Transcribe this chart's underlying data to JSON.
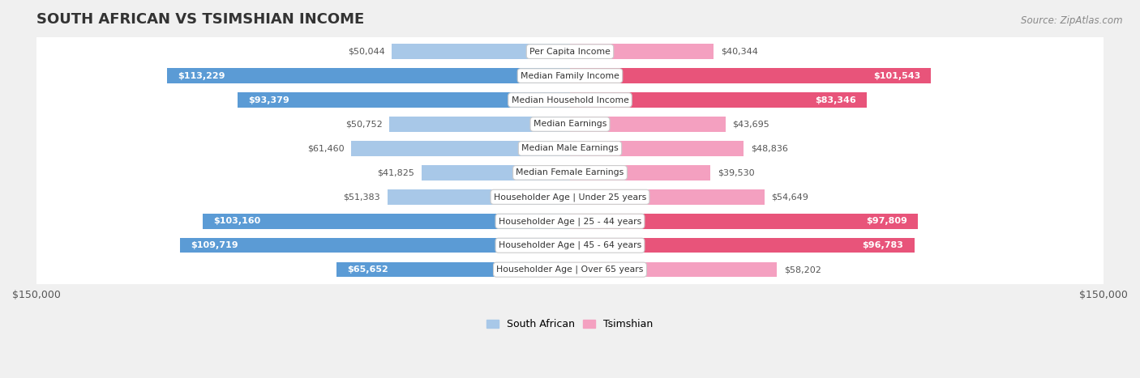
{
  "title": "SOUTH AFRICAN VS TSIMSHIAN INCOME",
  "source": "Source: ZipAtlas.com",
  "categories": [
    "Per Capita Income",
    "Median Family Income",
    "Median Household Income",
    "Median Earnings",
    "Median Male Earnings",
    "Median Female Earnings",
    "Householder Age | Under 25 years",
    "Householder Age | 25 - 44 years",
    "Householder Age | 45 - 64 years",
    "Householder Age | Over 65 years"
  ],
  "south_african": [
    50044,
    113229,
    93379,
    50752,
    61460,
    41825,
    51383,
    103160,
    109719,
    65652
  ],
  "tsimshian": [
    40344,
    101543,
    83346,
    43695,
    48836,
    39530,
    54649,
    97809,
    96783,
    58202
  ],
  "south_african_labels": [
    "$50,044",
    "$113,229",
    "$93,379",
    "$50,752",
    "$61,460",
    "$41,825",
    "$51,383",
    "$103,160",
    "$109,719",
    "$65,652"
  ],
  "tsimshian_labels": [
    "$40,344",
    "$101,543",
    "$83,346",
    "$43,695",
    "$48,836",
    "$39,530",
    "$54,649",
    "$97,809",
    "$96,783",
    "$58,202"
  ],
  "color_sa_light": "#a8c8e8",
  "color_sa_dark": "#5b9bd5",
  "color_ts_light": "#f4a0c0",
  "color_ts_dark": "#e8547a",
  "background_color": "#f0f0f0",
  "row_bg_color": "#ffffff",
  "row_border_color": "#d0d0d0",
  "max_value": 150000,
  "legend_sa": "South African",
  "legend_ts": "Tsimshian",
  "sa_inside_threshold": 65000,
  "ts_inside_threshold": 65000
}
